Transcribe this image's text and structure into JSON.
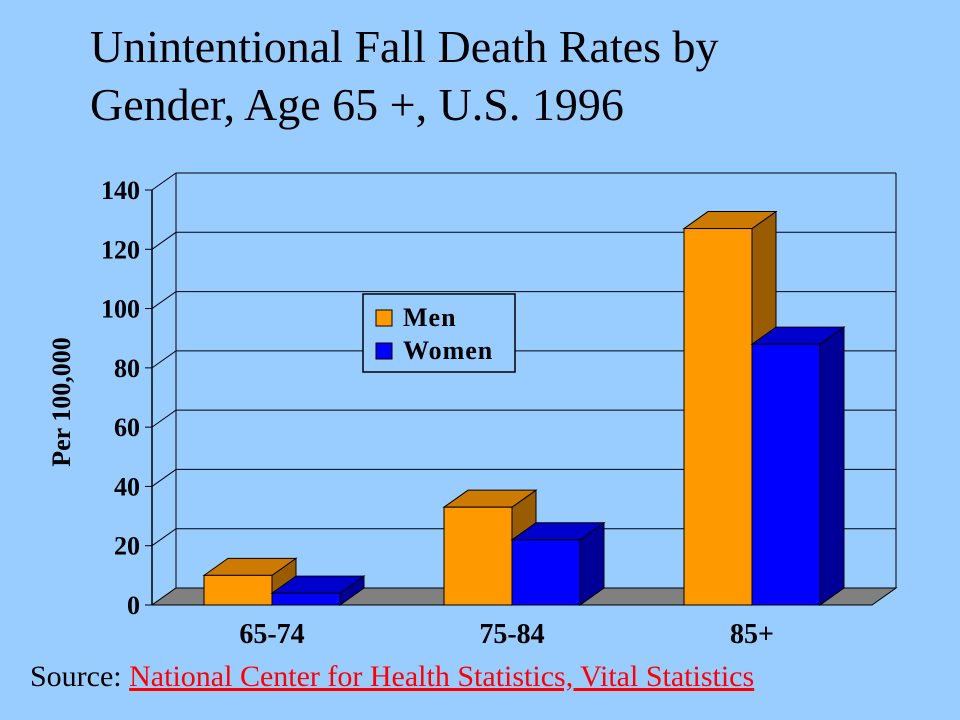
{
  "title_line1": "Unintentional Fall Death Rates by",
  "title_line2": "Gender, Age 65 +, U.S. 1996",
  "source": {
    "label": "Source:",
    "link_text": "National Center for Health Statistics, Vital Statistics"
  },
  "colors": {
    "background": "#99ccff",
    "men": "#ff9900",
    "men_side": "#995c00",
    "men_top": "#cc7a00",
    "women": "#0000ff",
    "women_side": "#000099",
    "women_top": "#0000cc",
    "floor": "#808080",
    "link": "#ff0000"
  },
  "chart_data": {
    "type": "bar",
    "style": "3d-clustered-column",
    "categories": [
      "65-74",
      "75-84",
      "85+"
    ],
    "series": [
      {
        "name": "Men",
        "values": [
          10,
          33,
          127
        ]
      },
      {
        "name": "Women",
        "values": [
          4,
          22,
          88
        ]
      }
    ],
    "ylabel": "Per 100,000",
    "ylim": [
      0,
      140
    ],
    "yticks": [
      0,
      20,
      40,
      60,
      80,
      100,
      120,
      140
    ],
    "grid": true,
    "legend_position": "center-left inside plot"
  }
}
